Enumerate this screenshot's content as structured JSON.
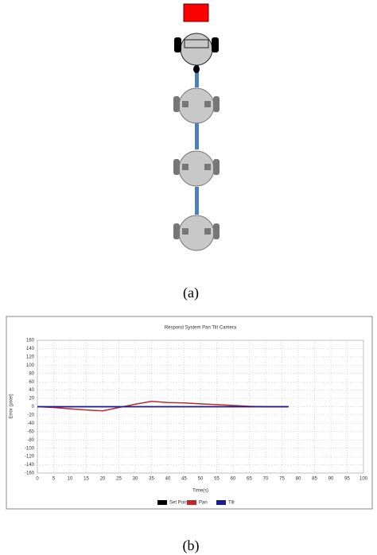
{
  "captions": [
    "(a)",
    "(b)"
  ],
  "chart_data": {
    "type": "line",
    "title": "Respond System Pan Tilt Camera",
    "x_label": "Time(s)",
    "y_label": "Error (pixel)",
    "x": [
      0,
      5,
      10,
      15,
      20,
      25,
      30,
      35,
      40,
      45,
      50,
      55,
      60,
      65,
      70,
      75,
      77
    ],
    "series": [
      {
        "name": "Set Point",
        "color": "#000000",
        "values": [
          0,
          0,
          0,
          0,
          0,
          0,
          0,
          0,
          0,
          0,
          0,
          0,
          0,
          0,
          0,
          0,
          0
        ]
      },
      {
        "name": "Pan",
        "color": "#c0282d",
        "values": [
          0,
          -2,
          -5,
          -8,
          -10,
          -2,
          6,
          13,
          10,
          9,
          7,
          5,
          3,
          1,
          0,
          0,
          0
        ]
      },
      {
        "name": "Tilt",
        "color": "#1a1a9c",
        "values": [
          0,
          0,
          0,
          0,
          0,
          0,
          0,
          0,
          0,
          0,
          0,
          0,
          0,
          0,
          0,
          0,
          0
        ]
      }
    ],
    "xlim": [
      0,
      100
    ],
    "xticks": [
      0,
      5,
      10,
      15,
      20,
      25,
      30,
      35,
      40,
      45,
      50,
      55,
      60,
      65,
      70,
      75,
      80,
      85,
      90,
      95,
      100
    ],
    "ylim": [
      -160,
      160
    ],
    "yticks": [
      -160,
      -140,
      -120,
      -100,
      -80,
      -60,
      -40,
      -20,
      0,
      20,
      40,
      60,
      80,
      100,
      120,
      140,
      160
    ],
    "grid": true,
    "legend": "bottom"
  }
}
